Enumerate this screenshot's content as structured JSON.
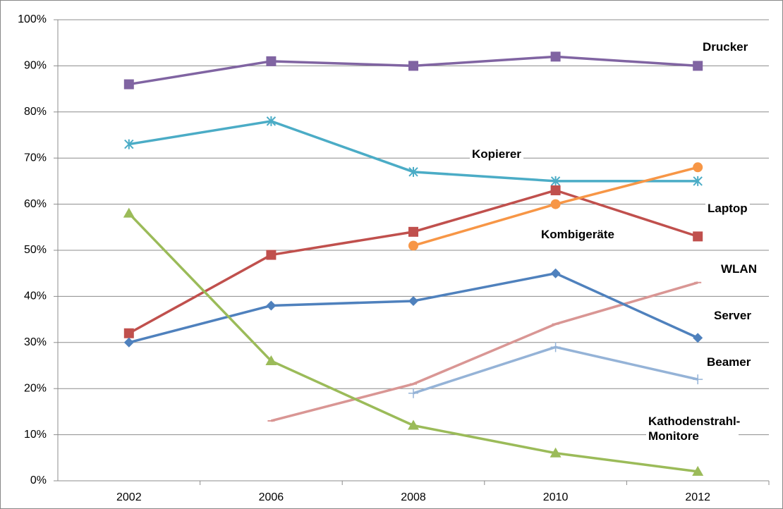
{
  "chart_data": {
    "type": "line",
    "categories": [
      "2002",
      "2006",
      "2008",
      "2010",
      "2012"
    ],
    "series": [
      {
        "name": "Drucker",
        "color": "#8064a2",
        "marker": "square",
        "values": [
          86,
          91,
          90,
          92,
          90
        ]
      },
      {
        "name": "Kopierer",
        "color": "#4bacc6",
        "marker": "asterisk",
        "values": [
          73,
          78,
          67,
          65,
          65
        ]
      },
      {
        "name": "Laptop",
        "color": "#c0504d",
        "marker": "square",
        "values": [
          32,
          49,
          54,
          63,
          53
        ]
      },
      {
        "name": "Kombigeräte",
        "color": "#f79646",
        "marker": "circle",
        "values": [
          null,
          null,
          51,
          60,
          68
        ]
      },
      {
        "name": "WLAN",
        "color": "#d99694",
        "marker": "dash",
        "values": [
          null,
          13,
          21,
          34,
          43
        ]
      },
      {
        "name": "Server",
        "color": "#4f81bd",
        "marker": "diamond",
        "values": [
          30,
          38,
          39,
          45,
          31
        ]
      },
      {
        "name": "Beamer",
        "color": "#95b3d7",
        "marker": "plus",
        "values": [
          null,
          null,
          19,
          29,
          22
        ]
      },
      {
        "name": "Kathodenstrahl-Monitore",
        "color": "#9bbb59",
        "marker": "triangle",
        "values": [
          58,
          26,
          12,
          6,
          2
        ]
      }
    ],
    "ylim": [
      0,
      100
    ],
    "yticks": [
      {
        "value": 0,
        "label": "0%"
      },
      {
        "value": 10,
        "label": "10%"
      },
      {
        "value": 20,
        "label": "20%"
      },
      {
        "value": 30,
        "label": "30%"
      },
      {
        "value": 40,
        "label": "40%"
      },
      {
        "value": 50,
        "label": "50%"
      },
      {
        "value": 60,
        "label": "60%"
      },
      {
        "value": 70,
        "label": "70%"
      },
      {
        "value": 80,
        "label": "80%"
      },
      {
        "value": 90,
        "label": "90%"
      },
      {
        "value": 100,
        "label": "100%"
      }
    ],
    "grid": true
  }
}
